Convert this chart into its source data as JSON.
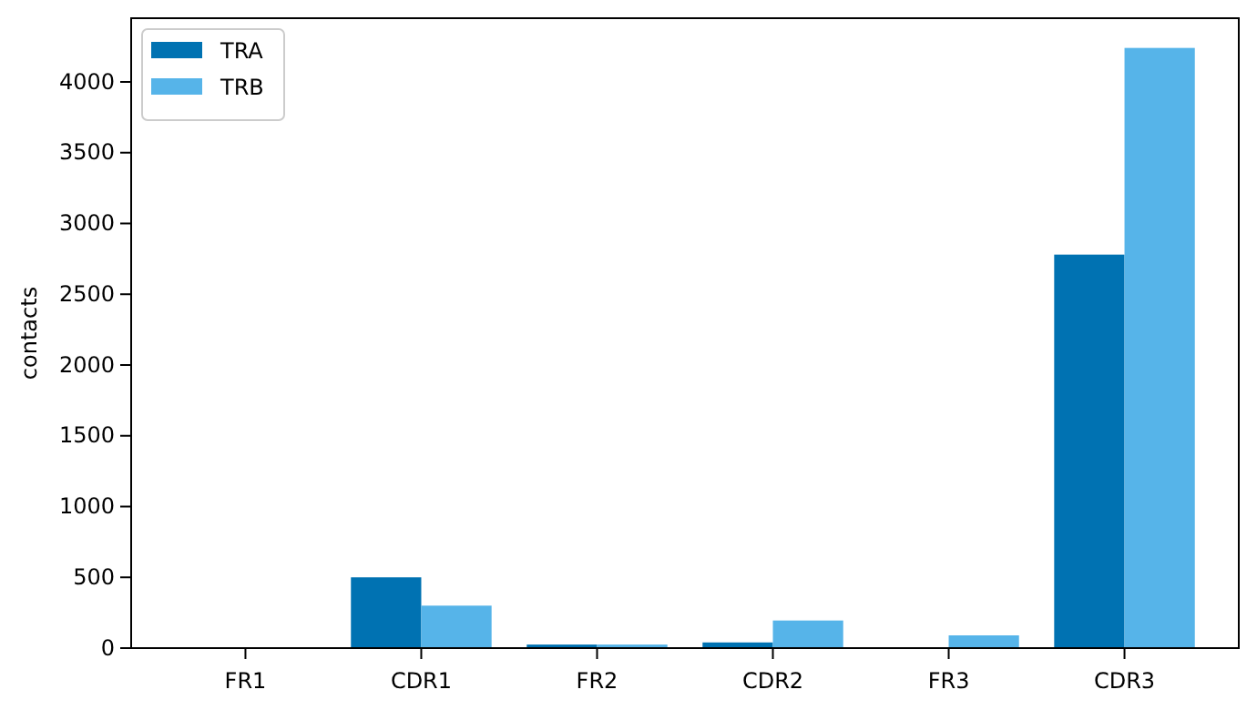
{
  "chart_data": {
    "type": "bar",
    "ylabel": "contacts",
    "categories": [
      "FR1",
      "CDR1",
      "FR2",
      "CDR2",
      "FR3",
      "CDR3"
    ],
    "series": [
      {
        "name": "TRA",
        "color": "#0072b2",
        "values": [
          0,
          500,
          25,
          40,
          0,
          2780
        ]
      },
      {
        "name": "TRB",
        "color": "#56b4e9",
        "values": [
          0,
          300,
          25,
          195,
          90,
          4240
        ]
      }
    ],
    "ylim": [
      0,
      4450
    ],
    "yticks": [
      0,
      500,
      1000,
      1500,
      2000,
      2500,
      3000,
      3500,
      4000
    ],
    "legend": "top left",
    "grid": false
  }
}
